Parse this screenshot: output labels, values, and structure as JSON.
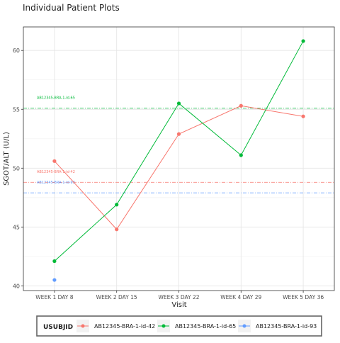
{
  "chart_data": {
    "type": "line",
    "title": "Individual Patient Plots",
    "xlabel": "Visit",
    "ylabel": "SGOT/ALT (U/L)",
    "categories": [
      "WEEK 1 DAY 8",
      "WEEK 2 DAY 15",
      "WEEK 3 DAY 22",
      "WEEK 4 DAY 29",
      "WEEK 5 DAY 36"
    ],
    "ylim": [
      39.6,
      62
    ],
    "yticks": [
      40,
      45,
      50,
      55,
      60
    ],
    "grid": true,
    "legend": {
      "title": "USUBJID",
      "position": "bottom"
    },
    "series": [
      {
        "name": "AB12345-BRA-1-id-42",
        "color": "#F8766D",
        "values": [
          50.6,
          44.8,
          52.9,
          55.3,
          54.4
        ]
      },
      {
        "name": "AB12345-BRA-1-id-65",
        "color": "#00BA38",
        "values": [
          42.1,
          46.9,
          55.5,
          51.1,
          60.8
        ]
      },
      {
        "name": "AB12345-BRA-1-id-93",
        "color": "#619CFF",
        "values": [
          40.5,
          null,
          null,
          null,
          null
        ]
      }
    ],
    "reference_lines": [
      {
        "series": "AB12345-BRA-1-id-65",
        "value": 55.1,
        "label": "AB12345-BRA-1-id-65"
      },
      {
        "series": "AB12345-BRA-1-id-42",
        "value": 48.8,
        "label": "AB12345-BRA-1-id-42"
      },
      {
        "series": "AB12345-BRA-1-id-93",
        "value": 47.9,
        "label": "AB12345-BRA-1-id-93"
      }
    ]
  }
}
